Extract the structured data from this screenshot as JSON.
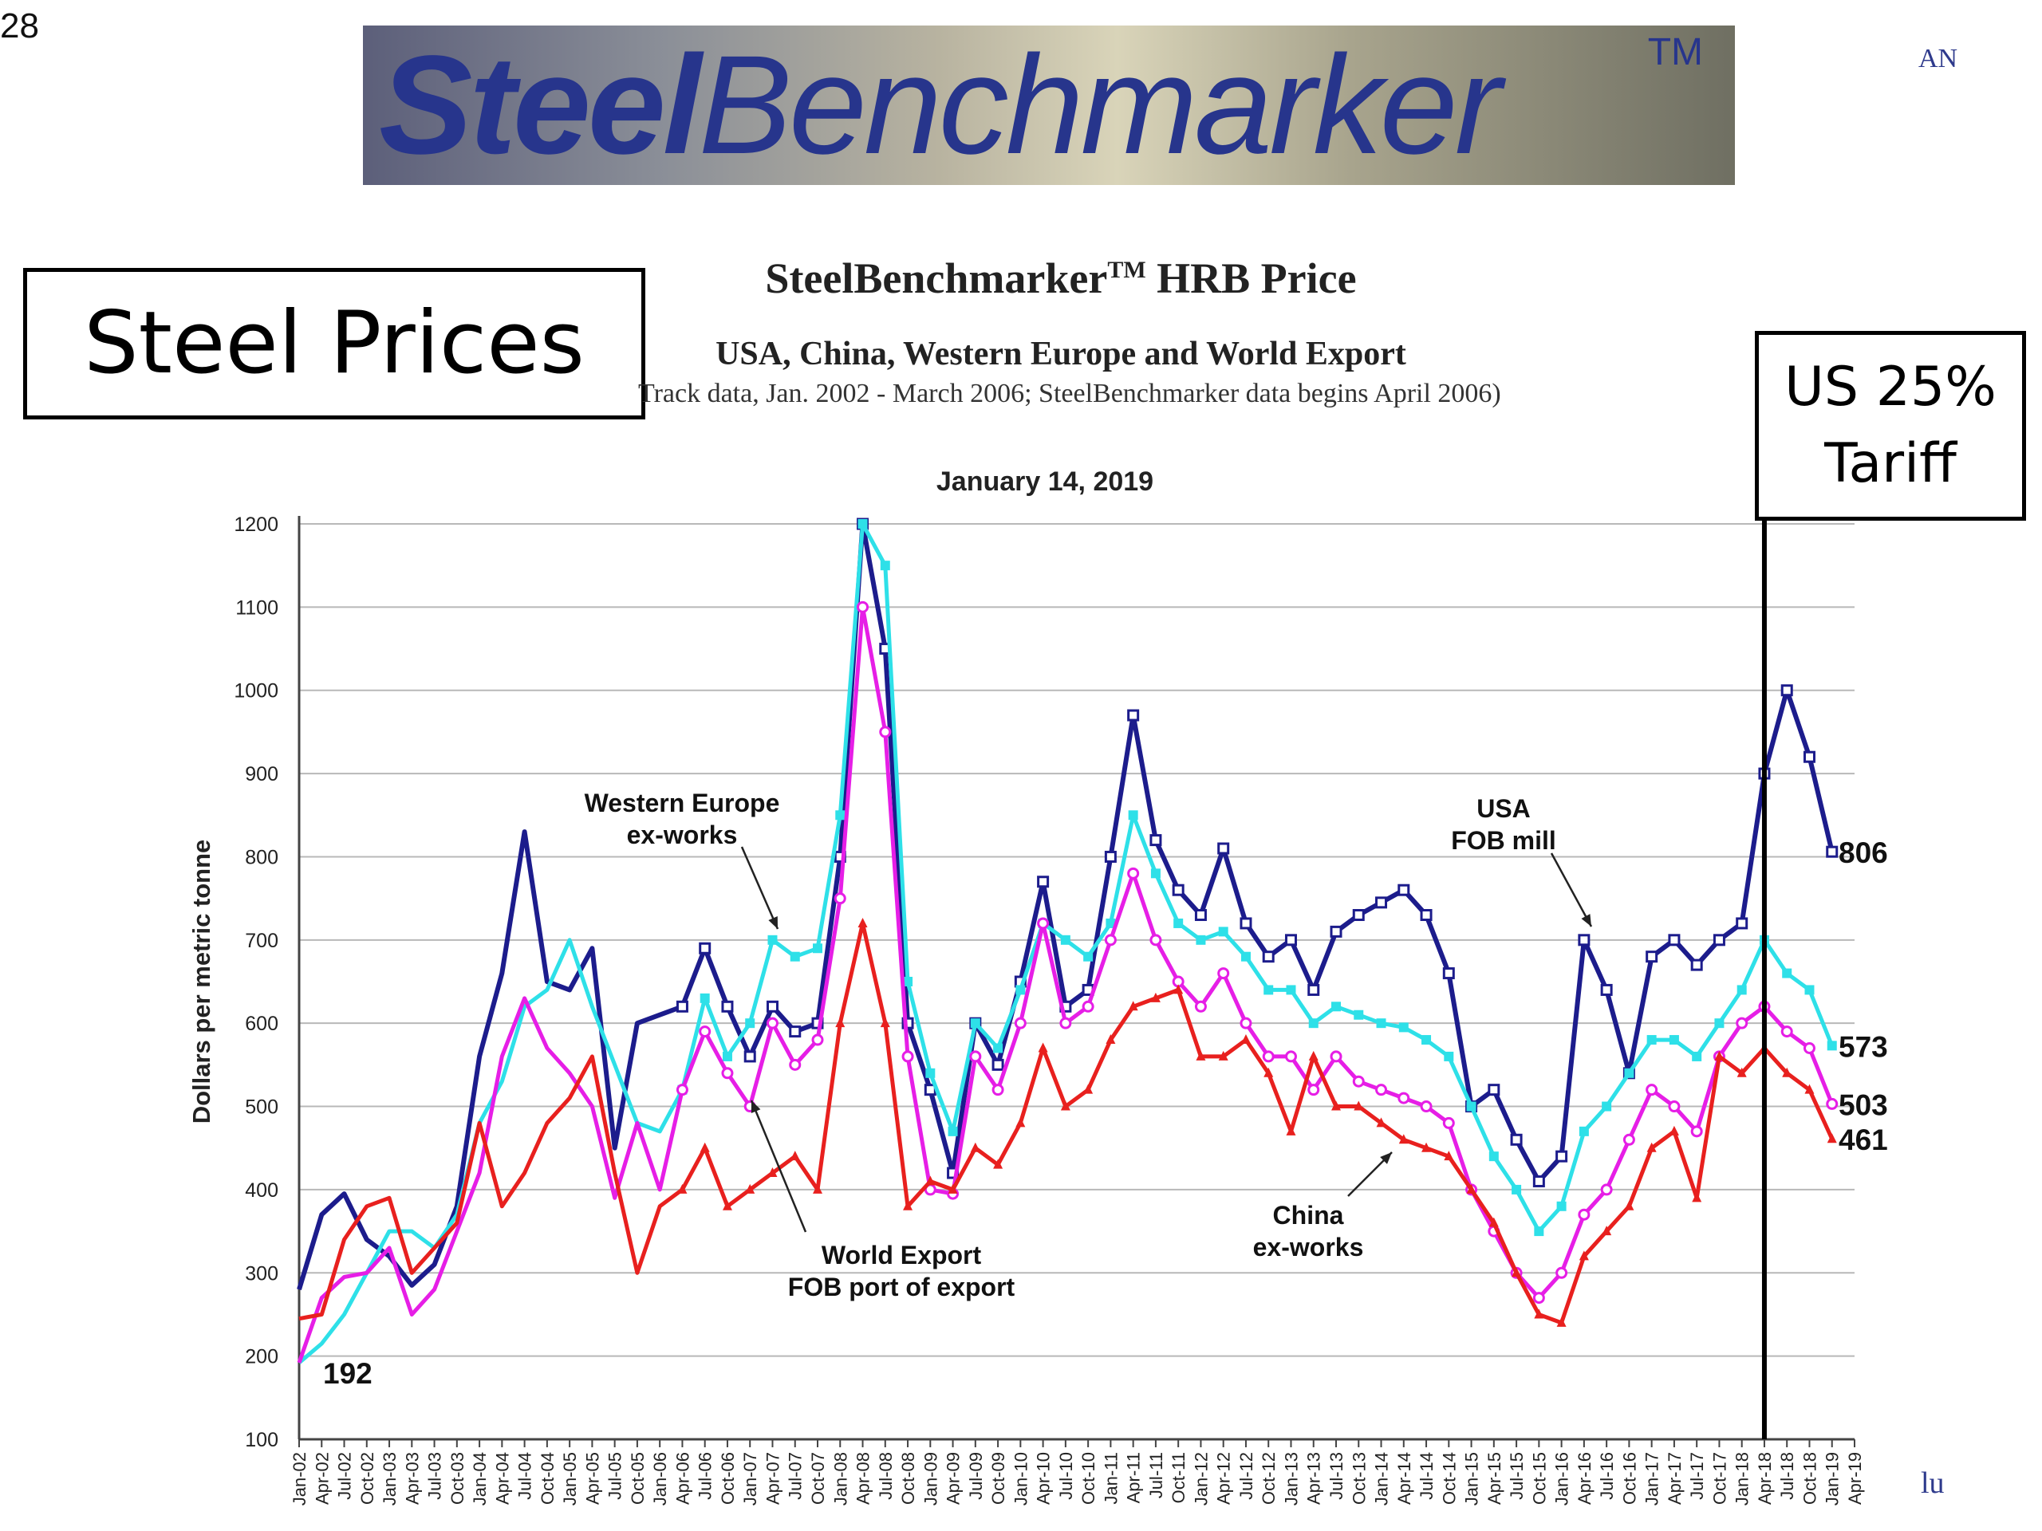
{
  "slide": {
    "number": "28",
    "corner_text_right": "AN",
    "corner_text_bottom": "lu"
  },
  "logo": {
    "bold_part": "Steel",
    "regular_part": "Benchmarker",
    "trademark": "TM"
  },
  "labels": {
    "steel_prices": "Steel Prices",
    "tariff_line1": "US 25%",
    "tariff_line2": "Tariff"
  },
  "chart_data": {
    "type": "line",
    "title_base": "SteelBenchmarker",
    "title_tm": "TM",
    "title_rest": "HRB Price",
    "subtitle": "USA, China, Western Europe and World Export",
    "source_note": "Track data, Jan. 2002 - March 2006; SteelBenchmarker data begins April 2006)",
    "date_label": "January 14, 2019",
    "ylabel": "Dollars per metric tonne",
    "xlabel": "",
    "ylim": [
      100,
      1200
    ],
    "yticks": [
      100,
      200,
      300,
      400,
      500,
      600,
      700,
      800,
      900,
      1000,
      1100,
      1200
    ],
    "xlim": [
      2002.0,
      2019.25
    ],
    "grid": true,
    "x_tick_labels": [
      "Jan-02",
      "Apr-02",
      "Jul-02",
      "Oct-02",
      "Jan-03",
      "Apr-03",
      "Jul-03",
      "Oct-03",
      "Jan-04",
      "Apr-04",
      "Jul-04",
      "Oct-04",
      "Jan-05",
      "Apr-05",
      "Jul-05",
      "Oct-05",
      "Jan-06",
      "Apr-06",
      "Jul-06",
      "Oct-06",
      "Jan-07",
      "Apr-07",
      "Jul-07",
      "Oct-07",
      "Jan-08",
      "Apr-08",
      "Jul-08",
      "Oct-08",
      "Jan-09",
      "Apr-09",
      "Jul-09",
      "Oct-09",
      "Jan-10",
      "Apr-10",
      "Jul-10",
      "Oct-10",
      "Jan-11",
      "Apr-11",
      "Jul-11",
      "Oct-11",
      "Jan-12",
      "Apr-12",
      "Jul-12",
      "Oct-12",
      "Jan-13",
      "Apr-13",
      "Jul-13",
      "Oct-13",
      "Jan-14",
      "Apr-14",
      "Jul-14",
      "Oct-14",
      "Jan-15",
      "Apr-15",
      "Jul-15",
      "Oct-15",
      "Jan-16",
      "Apr-16",
      "Jul-16",
      "Oct-16",
      "Jan-17",
      "Apr-17",
      "Jul-17",
      "Oct-17",
      "Jan-18",
      "Apr-18",
      "Jul-18",
      "Oct-18",
      "Jan-19",
      "Apr-19"
    ],
    "tariff_marker_x": 2018.25,
    "series": [
      {
        "name": "USA FOB mill",
        "color": "#1c1c8c",
        "x": [
          2002.0,
          2002.25,
          2002.5,
          2002.75,
          2003.0,
          2003.25,
          2003.5,
          2003.75,
          2004.0,
          2004.25,
          2004.5,
          2004.75,
          2005.0,
          2005.25,
          2005.5,
          2005.75,
          2006.0,
          2006.25,
          2006.5,
          2006.75,
          2007.0,
          2007.25,
          2007.5,
          2007.75,
          2008.0,
          2008.25,
          2008.5,
          2008.75,
          2009.0,
          2009.25,
          2009.5,
          2009.75,
          2010.0,
          2010.25,
          2010.5,
          2010.75,
          2011.0,
          2011.25,
          2011.5,
          2011.75,
          2012.0,
          2012.25,
          2012.5,
          2012.75,
          2013.0,
          2013.25,
          2013.5,
          2013.75,
          2014.0,
          2014.25,
          2014.5,
          2014.75,
          2015.0,
          2015.25,
          2015.5,
          2015.75,
          2016.0,
          2016.25,
          2016.5,
          2016.75,
          2017.0,
          2017.25,
          2017.5,
          2017.75,
          2018.0,
          2018.25,
          2018.5,
          2018.75,
          2019.0
        ],
        "y": [
          280,
          370,
          395,
          340,
          320,
          285,
          310,
          380,
          560,
          660,
          830,
          650,
          640,
          690,
          450,
          600,
          610,
          620,
          690,
          620,
          560,
          620,
          590,
          600,
          800,
          1200,
          1050,
          600,
          520,
          420,
          600,
          550,
          650,
          770,
          620,
          640,
          800,
          970,
          820,
          760,
          730,
          810,
          720,
          680,
          700,
          640,
          710,
          730,
          745,
          760,
          730,
          660,
          500,
          520,
          460,
          410,
          440,
          700,
          640,
          540,
          680,
          700,
          670,
          700,
          720,
          900,
          1000,
          920,
          806
        ]
      },
      {
        "name": "Western Europe ex-works",
        "color": "#2ee0e8",
        "x": [
          2002.0,
          2002.25,
          2002.5,
          2002.75,
          2003.0,
          2003.25,
          2003.5,
          2003.75,
          2004.0,
          2004.25,
          2004.5,
          2004.75,
          2005.0,
          2005.25,
          2005.5,
          2005.75,
          2006.0,
          2006.25,
          2006.5,
          2006.75,
          2007.0,
          2007.25,
          2007.5,
          2007.75,
          2008.0,
          2008.25,
          2008.5,
          2008.75,
          2009.0,
          2009.25,
          2009.5,
          2009.75,
          2010.0,
          2010.25,
          2010.5,
          2010.75,
          2011.0,
          2011.25,
          2011.5,
          2011.75,
          2012.0,
          2012.25,
          2012.5,
          2012.75,
          2013.0,
          2013.25,
          2013.5,
          2013.75,
          2014.0,
          2014.25,
          2014.5,
          2014.75,
          2015.0,
          2015.25,
          2015.5,
          2015.75,
          2016.0,
          2016.25,
          2016.5,
          2016.75,
          2017.0,
          2017.25,
          2017.5,
          2017.75,
          2018.0,
          2018.25,
          2018.5,
          2018.75,
          2019.0
        ],
        "y": [
          192,
          215,
          250,
          300,
          350,
          350,
          330,
          370,
          480,
          530,
          620,
          640,
          700,
          620,
          550,
          480,
          470,
          520,
          630,
          560,
          600,
          700,
          680,
          690,
          850,
          1200,
          1150,
          650,
          540,
          470,
          600,
          570,
          640,
          720,
          700,
          680,
          720,
          850,
          780,
          720,
          700,
          710,
          680,
          640,
          640,
          600,
          620,
          610,
          600,
          595,
          580,
          560,
          500,
          440,
          400,
          350,
          380,
          470,
          500,
          540,
          580,
          580,
          560,
          600,
          640,
          700,
          660,
          640,
          573
        ]
      },
      {
        "name": "World Export FOB port of export",
        "color": "#e61ee6",
        "x": [
          2002.0,
          2002.25,
          2002.5,
          2002.75,
          2003.0,
          2003.25,
          2003.5,
          2003.75,
          2004.0,
          2004.25,
          2004.5,
          2004.75,
          2005.0,
          2005.25,
          2005.5,
          2005.75,
          2006.0,
          2006.25,
          2006.5,
          2006.75,
          2007.0,
          2007.25,
          2007.5,
          2007.75,
          2008.0,
          2008.25,
          2008.5,
          2008.75,
          2009.0,
          2009.25,
          2009.5,
          2009.75,
          2010.0,
          2010.25,
          2010.5,
          2010.75,
          2011.0,
          2011.25,
          2011.5,
          2011.75,
          2012.0,
          2012.25,
          2012.5,
          2012.75,
          2013.0,
          2013.25,
          2013.5,
          2013.75,
          2014.0,
          2014.25,
          2014.5,
          2014.75,
          2015.0,
          2015.25,
          2015.5,
          2015.75,
          2016.0,
          2016.25,
          2016.5,
          2016.75,
          2017.0,
          2017.25,
          2017.5,
          2017.75,
          2018.0,
          2018.25,
          2018.5,
          2018.75,
          2019.0
        ],
        "y": [
          192,
          270,
          295,
          300,
          330,
          250,
          280,
          350,
          420,
          560,
          630,
          570,
          540,
          500,
          390,
          480,
          400,
          520,
          590,
          540,
          500,
          600,
          550,
          580,
          750,
          1100,
          950,
          560,
          400,
          395,
          560,
          520,
          600,
          720,
          600,
          620,
          700,
          780,
          700,
          650,
          620,
          660,
          600,
          560,
          560,
          520,
          560,
          530,
          520,
          510,
          500,
          480,
          400,
          350,
          300,
          270,
          300,
          370,
          400,
          460,
          520,
          500,
          470,
          560,
          600,
          620,
          590,
          570,
          503
        ]
      },
      {
        "name": "China ex-works",
        "color": "#e8201e",
        "x": [
          2002.0,
          2002.25,
          2002.5,
          2002.75,
          2003.0,
          2003.25,
          2003.5,
          2003.75,
          2004.0,
          2004.25,
          2004.5,
          2004.75,
          2005.0,
          2005.25,
          2005.5,
          2005.75,
          2006.0,
          2006.25,
          2006.5,
          2006.75,
          2007.0,
          2007.25,
          2007.5,
          2007.75,
          2008.0,
          2008.25,
          2008.5,
          2008.75,
          2009.0,
          2009.25,
          2009.5,
          2009.75,
          2010.0,
          2010.25,
          2010.5,
          2010.75,
          2011.0,
          2011.25,
          2011.5,
          2011.75,
          2012.0,
          2012.25,
          2012.5,
          2012.75,
          2013.0,
          2013.25,
          2013.5,
          2013.75,
          2014.0,
          2014.25,
          2014.5,
          2014.75,
          2015.0,
          2015.25,
          2015.5,
          2015.75,
          2016.0,
          2016.25,
          2016.5,
          2016.75,
          2017.0,
          2017.25,
          2017.5,
          2017.75,
          2018.0,
          2018.25,
          2018.5,
          2018.75,
          2019.0
        ],
        "y": [
          245,
          250,
          340,
          380,
          390,
          300,
          330,
          360,
          480,
          380,
          420,
          480,
          510,
          560,
          420,
          300,
          380,
          400,
          450,
          380,
          400,
          420,
          440,
          400,
          600,
          720,
          600,
          380,
          410,
          400,
          450,
          430,
          480,
          570,
          500,
          520,
          580,
          620,
          630,
          640,
          560,
          560,
          580,
          540,
          470,
          560,
          500,
          500,
          480,
          460,
          450,
          440,
          400,
          360,
          300,
          250,
          240,
          320,
          350,
          380,
          450,
          470,
          390,
          560,
          540,
          570,
          540,
          520,
          461
        ]
      }
    ],
    "annotations": [
      {
        "lines": [
          "Western Europe",
          "ex-works"
        ],
        "series": "Western Europe ex-works"
      },
      {
        "lines": [
          "USA",
          "FOB mill"
        ],
        "series": "USA FOB mill"
      },
      {
        "lines": [
          "World Export",
          "FOB port of export"
        ],
        "series": "World Export FOB port of export"
      },
      {
        "lines": [
          "China",
          "ex-works"
        ],
        "series": "China ex-works"
      }
    ],
    "start_value_label": "192",
    "end_value_labels": [
      "806",
      "573",
      "503",
      "461"
    ]
  }
}
